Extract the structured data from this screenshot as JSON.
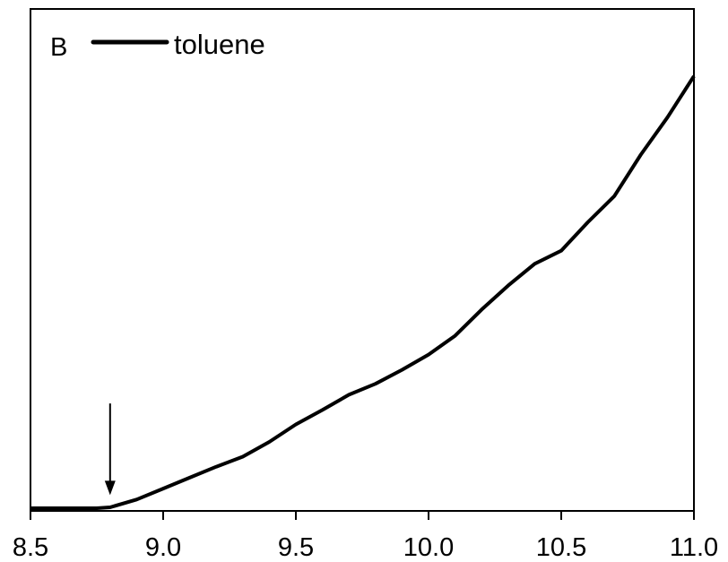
{
  "chart_data": {
    "type": "line",
    "panel_label": "B",
    "xlim": [
      8.5,
      11.0
    ],
    "x_ticks": [
      8.5,
      9.0,
      9.5,
      10.0,
      10.5,
      11.0
    ],
    "x_tick_labels": [
      "8.5",
      "9.0",
      "9.5",
      "10.0",
      "10.5",
      "11.0"
    ],
    "ylim": [
      0,
      1
    ],
    "legend": {
      "placement": "top-left"
    },
    "series": [
      {
        "name": "toluene",
        "color": "#000000",
        "x": [
          8.5,
          8.75,
          8.8,
          8.9,
          9.0,
          9.1,
          9.2,
          9.3,
          9.4,
          9.5,
          9.6,
          9.7,
          9.8,
          9.9,
          10.0,
          10.1,
          10.2,
          10.3,
          10.4,
          10.5,
          10.6,
          10.7,
          10.8,
          10.9,
          11.0
        ],
        "y": [
          0.0,
          0.0,
          0.002,
          0.02,
          0.045,
          0.07,
          0.095,
          0.118,
          0.152,
          0.192,
          0.225,
          0.26,
          0.285,
          0.317,
          0.352,
          0.395,
          0.455,
          0.51,
          0.56,
          0.59,
          0.655,
          0.715,
          0.81,
          0.895,
          0.99
        ]
      }
    ],
    "annotations": [
      {
        "type": "arrow",
        "x": 8.8,
        "y_from": 0.24,
        "y_to": 0.03
      }
    ]
  }
}
